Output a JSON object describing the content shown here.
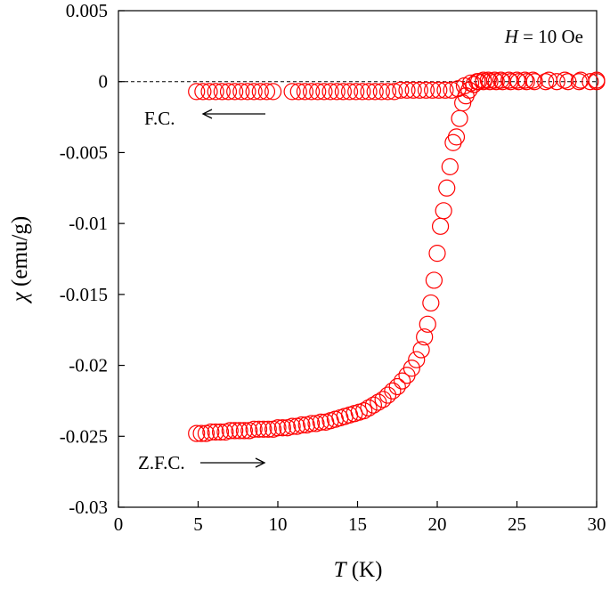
{
  "chart_data": {
    "type": "scatter",
    "xlabel": {
      "symbol": "T",
      "unit": "(K)"
    },
    "ylabel": {
      "symbol": "χ",
      "unit": "(emu/g)"
    },
    "annotation": {
      "symbol": "H",
      "text": "= 10 Oe"
    },
    "reference_line": 0,
    "xlim": [
      0,
      30
    ],
    "xticks": [
      0,
      5,
      10,
      15,
      20,
      25,
      30
    ],
    "ylim": [
      -0.03,
      0.005
    ],
    "yticks": [
      -0.03,
      -0.025,
      -0.02,
      -0.015,
      -0.01,
      -0.005,
      0,
      0.005
    ],
    "series": [
      {
        "name": "Z.F.C.",
        "color": "#ff0000",
        "x": [
          4.9,
          5.2,
          5.5,
          5.8,
          6.1,
          6.4,
          6.7,
          7.0,
          7.3,
          7.6,
          7.9,
          8.2,
          8.5,
          8.8,
          9.1,
          9.4,
          9.7,
          10.0,
          10.3,
          10.6,
          10.9,
          11.2,
          11.5,
          11.8,
          12.1,
          12.4,
          12.7,
          13.0,
          13.3,
          13.6,
          13.9,
          14.2,
          14.5,
          14.8,
          15.1,
          15.4,
          15.7,
          16.0,
          16.3,
          16.6,
          16.9,
          17.2,
          17.5,
          17.8,
          18.1,
          18.4,
          18.7,
          19.0,
          19.2,
          19.4,
          19.6,
          19.8,
          20.0,
          20.2,
          20.4,
          20.6,
          20.8,
          21.0,
          21.2,
          21.4,
          21.6,
          21.8,
          22.0,
          22.3,
          22.6,
          22.9,
          23.2,
          23.6,
          24.0,
          24.5,
          25.0,
          25.5,
          26.0,
          27.0,
          28.0,
          29.0,
          30.0
        ],
        "values": [
          -0.0248,
          -0.0248,
          -0.0248,
          -0.0247,
          -0.0247,
          -0.0247,
          -0.0247,
          -0.0246,
          -0.0246,
          -0.0246,
          -0.0246,
          -0.0246,
          -0.0245,
          -0.0245,
          -0.0245,
          -0.0245,
          -0.0245,
          -0.0244,
          -0.0244,
          -0.0244,
          -0.0243,
          -0.0243,
          -0.0242,
          -0.0242,
          -0.0241,
          -0.0241,
          -0.024,
          -0.024,
          -0.0239,
          -0.0238,
          -0.0237,
          -0.0236,
          -0.0235,
          -0.0234,
          -0.0233,
          -0.0232,
          -0.023,
          -0.0228,
          -0.0226,
          -0.0224,
          -0.0221,
          -0.0218,
          -0.0215,
          -0.0211,
          -0.0207,
          -0.0202,
          -0.0196,
          -0.0189,
          -0.018,
          -0.0171,
          -0.0156,
          -0.014,
          -0.0121,
          -0.0102,
          -0.0091,
          -0.0075,
          -0.006,
          -0.0043,
          -0.0039,
          -0.0026,
          -0.0015,
          -0.001,
          -0.0006,
          -0.0002,
          0,
          0.0001,
          0.0001,
          0.0001,
          0.0001,
          0.0001,
          0.0001,
          0.0001,
          0.0001,
          0.0001,
          0.0001,
          0.0001,
          0.0001
        ]
      },
      {
        "name": "F.C.",
        "color": "#ff0000",
        "x": [
          4.9,
          5.3,
          5.7,
          6.1,
          6.5,
          6.9,
          7.3,
          7.7,
          8.1,
          8.5,
          8.9,
          9.3,
          9.7,
          10.9,
          11.3,
          11.7,
          12.1,
          12.5,
          12.9,
          13.3,
          13.7,
          14.1,
          14.5,
          14.9,
          15.3,
          15.7,
          16.1,
          16.5,
          16.9,
          17.3,
          17.7,
          18.1,
          18.5,
          18.9,
          19.3,
          19.7,
          20.1,
          20.5,
          20.9,
          21.3,
          21.7,
          22.1,
          22.5,
          22.9,
          23.3,
          23.7,
          24.1,
          24.6,
          25.1,
          25.6,
          26.1,
          26.8,
          27.5,
          28.2,
          28.9,
          29.6,
          30.0
        ],
        "values": [
          -0.0007,
          -0.0007,
          -0.0007,
          -0.0007,
          -0.0007,
          -0.0007,
          -0.0007,
          -0.0007,
          -0.0007,
          -0.0007,
          -0.0007,
          -0.0007,
          -0.0007,
          -0.0007,
          -0.0007,
          -0.0007,
          -0.0007,
          -0.0007,
          -0.0007,
          -0.0007,
          -0.0007,
          -0.0007,
          -0.0007,
          -0.0007,
          -0.0007,
          -0.0007,
          -0.0007,
          -0.0007,
          -0.0007,
          -0.0007,
          -0.0006,
          -0.0006,
          -0.0006,
          -0.0006,
          -0.0006,
          -0.0006,
          -0.0006,
          -0.0006,
          -0.0006,
          -0.0005,
          -0.0003,
          -0.0001,
          0,
          0,
          0,
          0,
          0,
          0,
          0,
          0,
          0,
          0,
          0,
          0,
          0,
          0,
          0
        ]
      }
    ]
  }
}
